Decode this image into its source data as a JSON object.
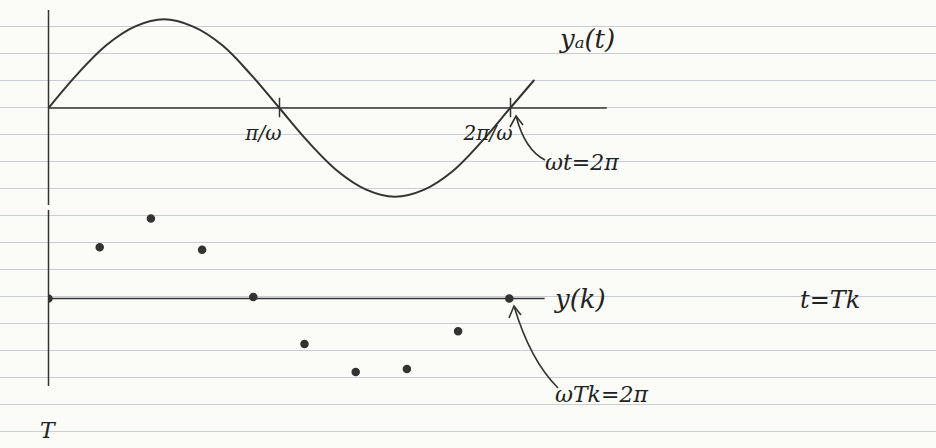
{
  "chart_data": [
    {
      "type": "line",
      "x": [
        0,
        0.39,
        0.79,
        1.18,
        1.57,
        1.96,
        2.36,
        2.75,
        3.14,
        3.53,
        3.93,
        4.32,
        4.71,
        5.11,
        5.5,
        5.89,
        6.28,
        6.6
      ],
      "series": [
        {
          "name": "yₐ(t)",
          "color": "#333333",
          "values": [
            0,
            0.38,
            0.71,
            0.92,
            1.0,
            0.92,
            0.71,
            0.38,
            0,
            -0.38,
            -0.71,
            -0.92,
            -1.0,
            -0.92,
            -0.71,
            -0.38,
            0,
            0.31
          ]
        }
      ],
      "xlim": [
        0,
        7.6
      ],
      "ylim": [
        -1.1,
        1.1
      ],
      "xticks": [
        {
          "value": 3.1416,
          "label": "π/ω"
        },
        {
          "value": 6.2832,
          "label": "2π/ω"
        }
      ],
      "yticks": [],
      "tick_labels": "x",
      "annotations": [
        "ωt=2π"
      ]
    },
    {
      "type": "scatter",
      "x": [
        0,
        1,
        2,
        3,
        4,
        5,
        6,
        7,
        8,
        9
      ],
      "series": [
        {
          "name": "y(k)",
          "color": "#333333",
          "values": [
            0,
            0.64,
            1.0,
            0.61,
            0.02,
            -0.57,
            -0.92,
            -0.88,
            -0.41,
            0
          ]
        }
      ],
      "xlim": [
        0,
        9.7
      ],
      "ylim": [
        -1.1,
        1.1
      ],
      "xticks": [],
      "yticks": [],
      "tick_labels": false,
      "annotations": [
        "t=Tk",
        "ωTk=2π",
        "T"
      ]
    }
  ]
}
